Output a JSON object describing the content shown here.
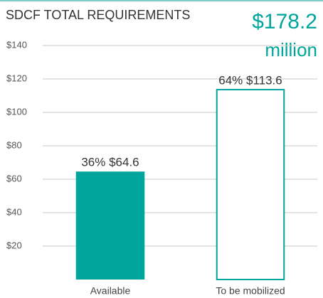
{
  "chart_data": {
    "type": "bar",
    "title": "SDCF TOTAL REQUIREMENTS",
    "total": {
      "amount": "$178.2",
      "unit": "million"
    },
    "categories": [
      "Available",
      "To be mobilized"
    ],
    "values": [
      64.6,
      113.6
    ],
    "value_labels": [
      "36% $64.6",
      "64% $113.6"
    ],
    "color": "#00a59b",
    "bar_styles": [
      "filled",
      "outline"
    ],
    "ylim": [
      0,
      140
    ],
    "yticks": [
      {
        "value": 20,
        "label": "$20"
      },
      {
        "value": 40,
        "label": "$40"
      },
      {
        "value": 60,
        "label": "$60"
      },
      {
        "value": 80,
        "label": "$80"
      },
      {
        "value": 100,
        "label": "$100"
      },
      {
        "value": 120,
        "label": "$120"
      },
      {
        "value": 140,
        "label": "$140"
      }
    ],
    "grid": true
  }
}
